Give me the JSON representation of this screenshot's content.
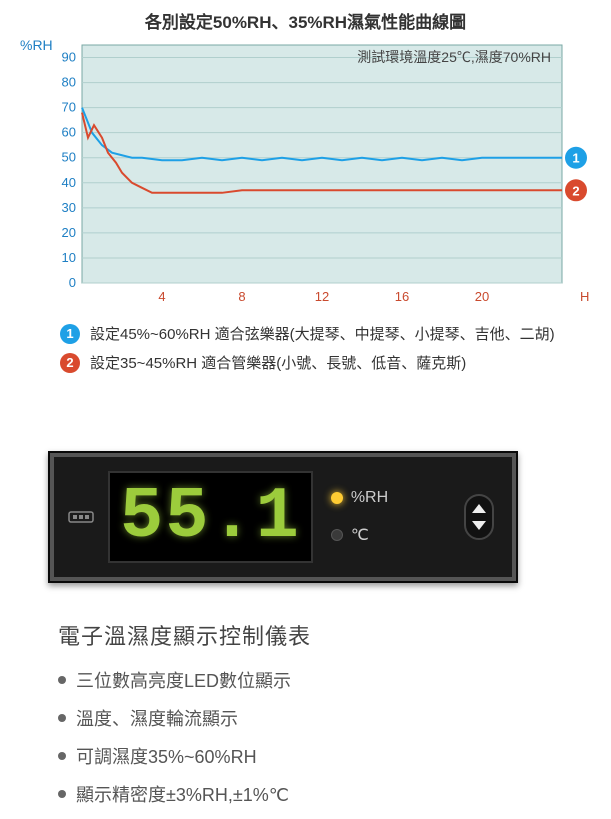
{
  "chart": {
    "type": "line",
    "title": "各別設定50%RH、35%RH濕氣性能曲線圖",
    "y_label": "%RH",
    "x_label": "H",
    "note": "測試環境溫度25℃,濕度70%RH",
    "y_ticks": [
      0,
      10,
      20,
      30,
      40,
      50,
      60,
      70,
      80,
      90
    ],
    "x_ticks": [
      4,
      8,
      12,
      16,
      20
    ],
    "ylim": [
      0,
      95
    ],
    "xlim": [
      0,
      24
    ],
    "background_color": "#d7e9e8",
    "grid_color": "#b0cfcd",
    "axis_font_size": 13,
    "tick_color_y": "#1e7fc4",
    "tick_color_x": "#c94a2e",
    "series": [
      {
        "id": "1",
        "name": "50%RH",
        "color": "#1ea0e6",
        "line_width": 2,
        "x": [
          0,
          0.5,
          1,
          1.5,
          2,
          2.5,
          3,
          4,
          5,
          6,
          7,
          8,
          9,
          10,
          11,
          12,
          13,
          14,
          15,
          16,
          17,
          18,
          19,
          20,
          21,
          22,
          23,
          24
        ],
        "y": [
          70,
          60,
          55,
          52,
          51,
          50,
          50,
          49,
          49,
          50,
          49,
          50,
          49,
          50,
          49,
          50,
          49,
          50,
          49,
          50,
          49,
          50,
          49,
          50,
          50,
          50,
          50,
          50
        ]
      },
      {
        "id": "2",
        "name": "35%RH",
        "color": "#d94a2e",
        "line_width": 2,
        "x": [
          0,
          0.3,
          0.6,
          1,
          1.3,
          1.7,
          2,
          2.5,
          3,
          3.5,
          4,
          5,
          6,
          7,
          8,
          9,
          10,
          11,
          12,
          13,
          14,
          15,
          16,
          17,
          18,
          19,
          20,
          21,
          22,
          23,
          24
        ],
        "y": [
          68,
          58,
          63,
          58,
          52,
          48,
          44,
          40,
          38,
          36,
          36,
          36,
          36,
          36,
          37,
          37,
          37,
          37,
          37,
          37,
          37,
          37,
          37,
          37,
          37,
          37,
          37,
          37,
          37,
          37,
          37
        ]
      }
    ],
    "legend": [
      {
        "id": "1",
        "badge_color": "#1ea0e6",
        "text": "設定45%~60%RH 適合弦樂器(大提琴、中提琴、小提琴、吉他、二胡)"
      },
      {
        "id": "2",
        "badge_color": "#d94a2e",
        "text": "設定35~45%RH 適合管樂器(小號、長號、低音、薩克斯)"
      }
    ]
  },
  "display": {
    "reading": "55.1",
    "reading_color": "#9ccc3c",
    "bg_color": "#1a1a1a",
    "unit_rh": "%RH",
    "unit_c": "℃",
    "active_unit": "rh"
  },
  "specs": {
    "title": "電子溫濕度顯示控制儀表",
    "items": [
      "三位數高亮度LED數位顯示",
      "溫度、濕度輪流顯示",
      "可調濕度35%~60%RH",
      "顯示精密度±3%RH,±1%℃"
    ]
  }
}
